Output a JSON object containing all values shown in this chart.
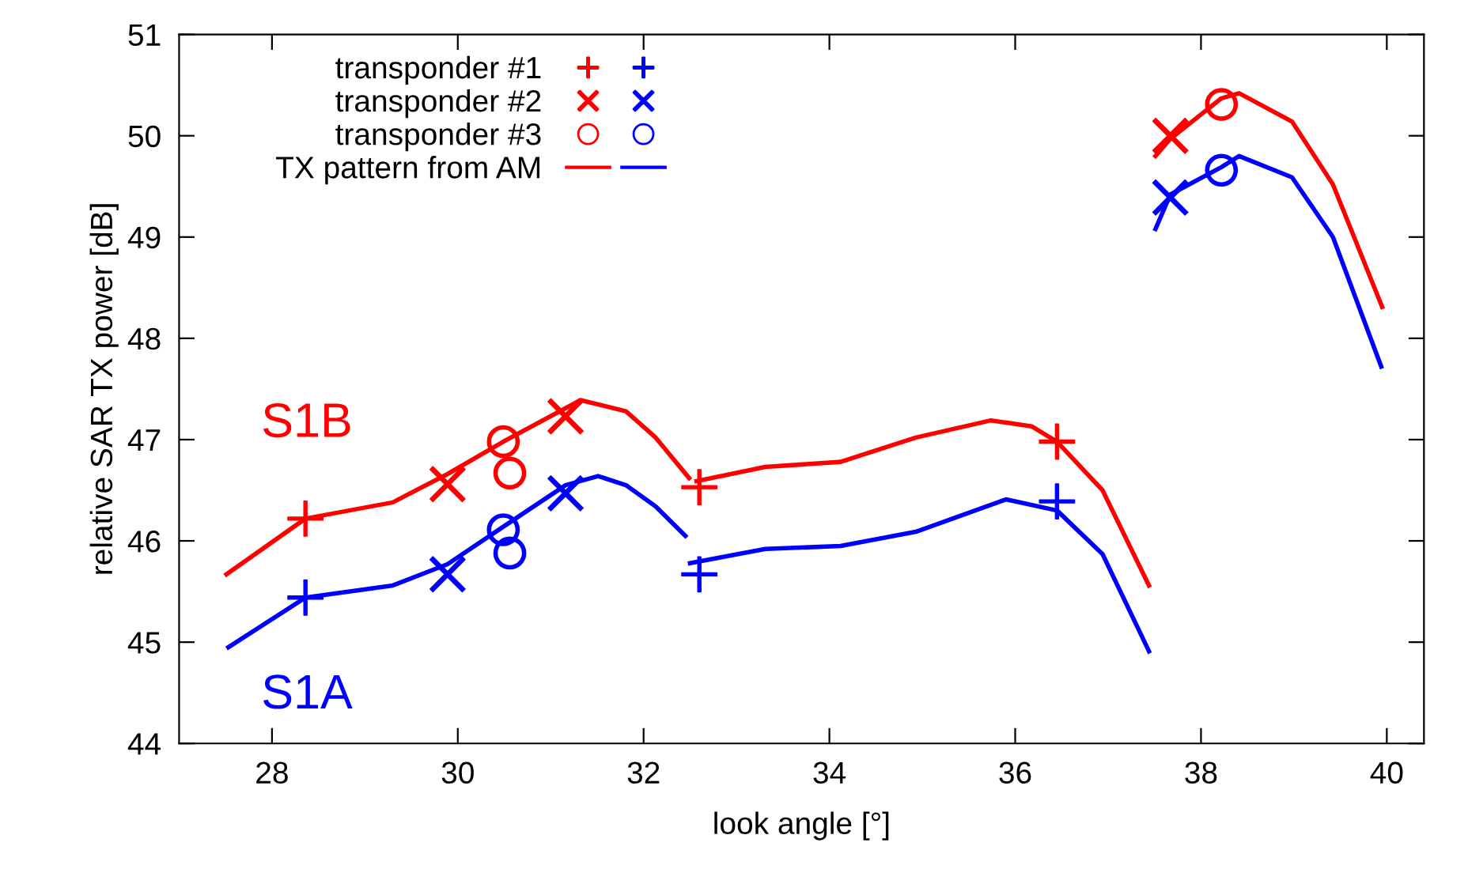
{
  "chart_data": {
    "type": "line",
    "xlabel": "look angle [°]",
    "ylabel": "relative SAR TX power [dB]",
    "xlim": [
      27,
      40.4
    ],
    "xticks": [
      28,
      30,
      32,
      34,
      36,
      38,
      40
    ],
    "ylim": [
      44,
      51
    ],
    "yticks": [
      44,
      45,
      46,
      47,
      48,
      49,
      50,
      51
    ],
    "grid": false,
    "legend": "top left",
    "line_style": "solid",
    "series": [
      {
        "name": "TX pattern from AM",
        "color": "#ff0000",
        "x": [
          27.51,
          28.36,
          29.3,
          29.89,
          30.49,
          31.16,
          31.32,
          31.81,
          32.13,
          32.49,
          32.53,
          32.57,
          33.31,
          34.12,
          34.93,
          35.74,
          36.18,
          36.45,
          36.94,
          37.44,
          37.48,
          37.51,
          37.67,
          38.22,
          38.41,
          38.98,
          39.42,
          39.95
        ],
        "values": [
          45.67,
          46.22,
          46.38,
          46.66,
          46.98,
          47.31,
          47.39,
          47.28,
          47.02,
          46.62,
          null,
          46.59,
          46.73,
          46.78,
          47.02,
          47.19,
          47.13,
          46.98,
          46.5,
          45.56,
          null,
          49.8,
          49.97,
          50.37,
          50.42,
          50.14,
          49.52,
          48.31
        ]
      },
      {
        "color": "#0000ff",
        "x": [
          27.53,
          28.36,
          29.3,
          29.89,
          30.49,
          31.16,
          31.51,
          31.81,
          32.13,
          32.45,
          32.48,
          32.5,
          33.31,
          34.12,
          34.93,
          35.9,
          36.45,
          36.94,
          37.44,
          37.48,
          37.51,
          37.67,
          38.22,
          38.41,
          38.98,
          39.42,
          39.94
        ],
        "values": [
          44.95,
          45.44,
          45.56,
          45.77,
          46.14,
          46.55,
          46.64,
          46.55,
          46.34,
          46.05,
          null,
          45.78,
          45.92,
          45.95,
          46.09,
          46.41,
          46.3,
          45.87,
          44.91,
          null,
          49.08,
          49.42,
          49.69,
          49.8,
          49.59,
          49.0,
          47.72
        ]
      },
      {
        "name": "transponder #1",
        "type": "scatter",
        "marker": "cross",
        "x": [
          28.36,
          32.6,
          36.45,
          28.36,
          32.6,
          36.45
        ],
        "values": [
          46.22,
          46.53,
          46.98,
          45.44,
          45.67,
          46.39
        ],
        "colors": [
          "#ff0000",
          "#ff0000",
          "#ff0000",
          "#0000ff",
          "#0000ff",
          "#0000ff"
        ]
      },
      {
        "name": "transponder #2",
        "type": "scatter",
        "marker": "x",
        "x": [
          29.89,
          31.16,
          37.67,
          29.89,
          31.16,
          37.67
        ],
        "values": [
          46.56,
          47.23,
          50.0,
          45.67,
          46.47,
          49.39
        ],
        "colors": [
          "#ff0000",
          "#ff0000",
          "#ff0000",
          "#0000ff",
          "#0000ff",
          "#0000ff"
        ]
      },
      {
        "name": "transponder #3",
        "type": "scatter",
        "marker": "circle",
        "x": [
          30.49,
          30.56,
          38.22,
          30.49,
          30.56,
          38.22
        ],
        "values": [
          46.98,
          46.67,
          50.31,
          46.11,
          45.88,
          49.66
        ],
        "colors": [
          "#ff0000",
          "#ff0000",
          "#ff0000",
          "#0000ff",
          "#0000ff",
          "#0000ff"
        ]
      }
    ],
    "annotations": [
      "S1B",
      "S1A"
    ]
  }
}
